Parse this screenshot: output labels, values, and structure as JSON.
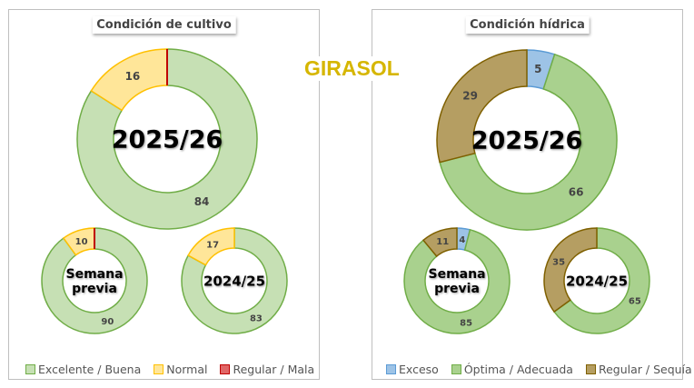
{
  "header": {
    "title": "GIRASOL"
  },
  "chart_data": [
    {
      "type": "donut",
      "title": "Condición de cultivo",
      "legend": [
        "Excelente / Buena",
        "Normal",
        "Regular / Mala"
      ],
      "colors": {
        "fill": [
          "#c6e0b4",
          "#ffe699",
          "#e06666"
        ],
        "stroke": [
          "#70ad47",
          "#ffc000",
          "#c00000"
        ]
      },
      "rings": [
        {
          "label": "2025/26",
          "values": [
            84,
            16,
            0
          ]
        },
        {
          "label": "Semana previa",
          "values": [
            90,
            10,
            0
          ]
        },
        {
          "label": "2024/25",
          "values": [
            83,
            17,
            0
          ]
        }
      ]
    },
    {
      "type": "donut",
      "title": "Condición hídrica",
      "legend": [
        "Exceso",
        "Óptima / Adecuada",
        "Regular / Sequía"
      ],
      "colors": {
        "fill": [
          "#9dc3e6",
          "#a9d18e",
          "#b59e62"
        ],
        "stroke": [
          "#5b9bd5",
          "#70ad47",
          "#7f6000"
        ]
      },
      "rings": [
        {
          "label": "2025/26",
          "values": [
            5,
            66,
            29
          ]
        },
        {
          "label": "Semana previa",
          "values": [
            4,
            85,
            11
          ]
        },
        {
          "label": "2024/25",
          "values": [
            0,
            65,
            35
          ]
        }
      ]
    }
  ]
}
